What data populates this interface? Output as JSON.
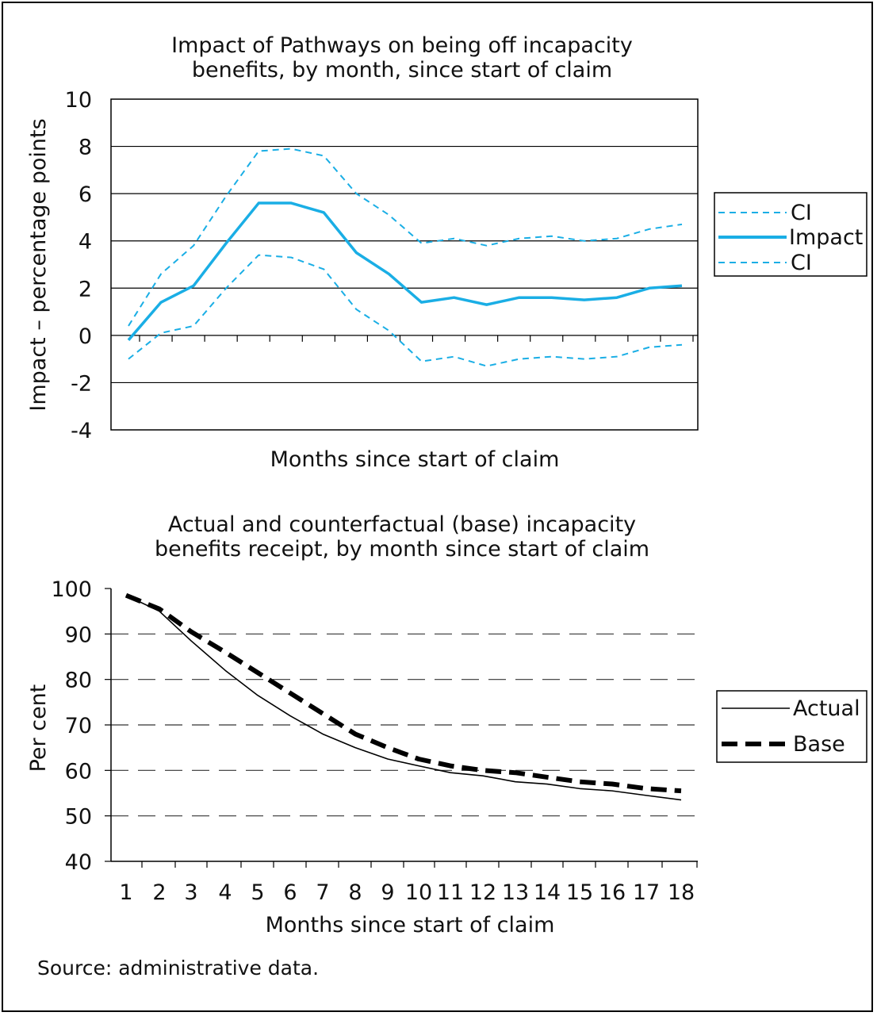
{
  "source_note": "Source: administrative data.",
  "chart_data": [
    {
      "type": "line",
      "title_line1": "Impact of Pathways on being off incapacity",
      "title_line2": "benefits, by month, since start of claim",
      "xlabel": "Months since start of claim",
      "ylabel": "Impact – percentage points",
      "ylim": [
        -4,
        10
      ],
      "yticks": [
        10,
        8,
        6,
        4,
        2,
        0,
        -2,
        -4
      ],
      "x": [
        1,
        2,
        3,
        4,
        5,
        6,
        7,
        8,
        9,
        10,
        11,
        12,
        13,
        14,
        15,
        16,
        17,
        18
      ],
      "grid": true,
      "legend_position": "right",
      "series": [
        {
          "name": "CI",
          "style": "dashed",
          "color": "#1aaee5",
          "values": [
            0.4,
            2.6,
            3.8,
            5.9,
            7.8,
            7.9,
            7.6,
            6.0,
            5.1,
            3.9,
            4.1,
            3.8,
            4.1,
            4.2,
            4.0,
            4.1,
            4.5,
            4.7
          ]
        },
        {
          "name": "Impact",
          "style": "solid",
          "color": "#1aaee5",
          "values": [
            -0.2,
            1.4,
            2.1,
            3.9,
            5.6,
            5.6,
            5.2,
            3.5,
            2.6,
            1.4,
            1.6,
            1.3,
            1.6,
            1.6,
            1.5,
            1.6,
            2.0,
            2.1
          ]
        },
        {
          "name": "CI",
          "style": "dashed",
          "color": "#1aaee5",
          "values": [
            -1.0,
            0.1,
            0.4,
            2.0,
            3.4,
            3.3,
            2.8,
            1.1,
            0.2,
            -1.1,
            -0.9,
            -1.3,
            -1.0,
            -0.9,
            -1.0,
            -0.9,
            -0.5,
            -0.4
          ]
        }
      ]
    },
    {
      "type": "line",
      "title_line1": "Actual and counterfactual (base) incapacity",
      "title_line2": "benefits receipt, by month since start of claim",
      "xlabel": "Months since start of claim",
      "ylabel": "Per cent",
      "ylim": [
        40,
        100
      ],
      "yticks": [
        100,
        90,
        80,
        70,
        60,
        50,
        40
      ],
      "categories": [
        "1",
        "2",
        "3",
        "4",
        "5",
        "6",
        "7",
        "8",
        "9",
        "10",
        "11",
        "12",
        "13",
        "14",
        "15",
        "16",
        "17",
        "18"
      ],
      "grid": true,
      "legend_position": "right",
      "series": [
        {
          "name": "Actual",
          "style": "thin-solid",
          "color": "#000000",
          "values": [
            98.5,
            95.0,
            88.5,
            82.0,
            76.5,
            72.0,
            68.0,
            65.0,
            62.5,
            61.0,
            59.5,
            58.8,
            57.5,
            57.0,
            56.0,
            55.5,
            54.5,
            53.5
          ]
        },
        {
          "name": "Base",
          "style": "thick-dashed",
          "color": "#000000",
          "values": [
            98.5,
            95.5,
            90.5,
            86.0,
            81.5,
            77.0,
            72.5,
            68.0,
            65.0,
            62.5,
            61.0,
            60.0,
            59.5,
            58.5,
            57.5,
            57.0,
            56.0,
            55.5
          ]
        }
      ]
    }
  ]
}
